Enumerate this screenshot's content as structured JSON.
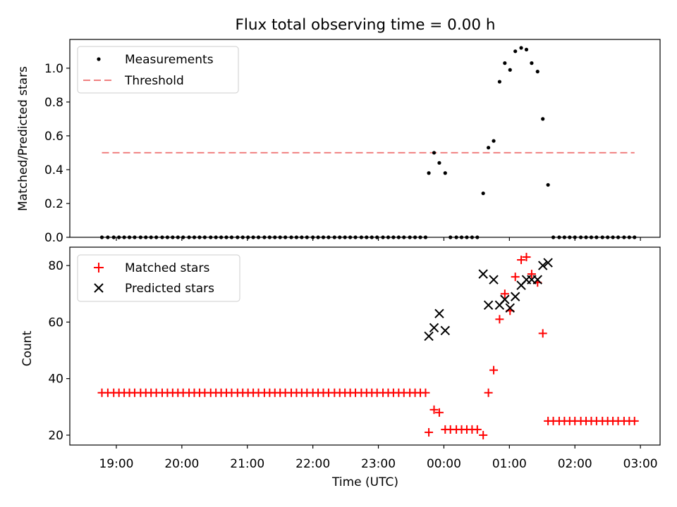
{
  "chart_data": {
    "title": "Flux total observing time = 0.00 h",
    "x_axis": {
      "label": "Time (UTC)",
      "ticks": [
        "19:00",
        "20:00",
        "21:00",
        "22:00",
        "23:00",
        "00:00",
        "01:00",
        "02:00",
        "03:00"
      ],
      "range_hours": [
        18.29,
        27.3
      ]
    },
    "panels": [
      {
        "type": "scatter",
        "ylabel": "Matched/Predicted stars",
        "ylim": [
          0,
          1.17
        ],
        "yticks": [
          "0.0",
          "0.2",
          "0.4",
          "0.6",
          "0.8",
          "1.0"
        ],
        "legend_position": "top-left",
        "series": [
          {
            "name": "Measurements",
            "marker": "dot",
            "color": "#000000",
            "x_hours": [
              18.78,
              18.87,
              18.96,
              19.04,
              19.12,
              19.2,
              19.28,
              19.37,
              19.45,
              19.53,
              19.61,
              19.7,
              19.78,
              19.86,
              19.94,
              20.02,
              20.11,
              20.19,
              20.27,
              20.35,
              20.44,
              20.52,
              20.6,
              20.68,
              20.76,
              20.85,
              20.93,
              21.01,
              21.09,
              21.17,
              21.26,
              21.34,
              21.42,
              21.5,
              21.58,
              21.67,
              21.75,
              21.83,
              21.91,
              22.0,
              22.08,
              22.16,
              22.24,
              22.33,
              22.41,
              22.49,
              22.57,
              22.65,
              22.74,
              22.82,
              22.9,
              22.98,
              23.07,
              23.15,
              23.23,
              23.31,
              23.39,
              23.48,
              23.56,
              23.64,
              23.72,
              23.77,
              23.85,
              23.93,
              24.02,
              24.1,
              24.19,
              24.27,
              24.35,
              24.43,
              24.51,
              24.6,
              24.68,
              24.76,
              24.85,
              24.93,
              25.01,
              25.09,
              25.18,
              25.26,
              25.34,
              25.43,
              25.51,
              25.59,
              25.67,
              25.76,
              25.84,
              25.92,
              26.0,
              26.09,
              26.17,
              26.25,
              26.33,
              26.42,
              26.5,
              26.58,
              26.66,
              26.75,
              26.83,
              26.91
            ],
            "y": [
              0,
              0,
              0,
              0,
              0,
              0,
              0,
              0,
              0,
              0,
              0,
              0,
              0,
              0,
              0,
              0,
              0,
              0,
              0,
              0,
              0,
              0,
              0,
              0,
              0,
              0,
              0,
              0,
              0,
              0,
              0,
              0,
              0,
              0,
              0,
              0,
              0,
              0,
              0,
              0,
              0,
              0,
              0,
              0,
              0,
              0,
              0,
              0,
              0,
              0,
              0,
              0,
              0,
              0,
              0,
              0,
              0,
              0,
              0,
              0,
              0,
              0.38,
              0.5,
              0.44,
              0.38,
              0,
              0,
              0,
              0,
              0,
              0,
              0.26,
              0.53,
              0.57,
              0.92,
              1.03,
              0.99,
              1.1,
              1.12,
              1.11,
              1.03,
              0.98,
              0.7,
              0.31,
              0,
              0,
              0,
              0,
              0,
              0,
              0,
              0,
              0,
              0,
              0,
              0,
              0,
              0,
              0,
              0
            ]
          },
          {
            "name": "Threshold",
            "marker": "dashed-line",
            "color": "#f08080",
            "x_hours": [
              18.78,
              26.91
            ],
            "y": [
              0.5,
              0.5
            ]
          }
        ]
      },
      {
        "type": "scatter",
        "ylabel": "Count",
        "ylim": [
          16.5,
          86.5
        ],
        "yticks": [
          "20",
          "40",
          "60",
          "80"
        ],
        "legend_position": "top-left",
        "series": [
          {
            "name": "Matched stars",
            "marker": "plus",
            "color": "#ff0000",
            "x_hours": [
              18.78,
              18.87,
              18.96,
              19.04,
              19.12,
              19.2,
              19.28,
              19.37,
              19.45,
              19.53,
              19.61,
              19.7,
              19.78,
              19.86,
              19.94,
              20.02,
              20.11,
              20.19,
              20.27,
              20.35,
              20.44,
              20.52,
              20.6,
              20.68,
              20.76,
              20.85,
              20.93,
              21.01,
              21.09,
              21.17,
              21.26,
              21.34,
              21.42,
              21.5,
              21.58,
              21.67,
              21.75,
              21.83,
              21.91,
              22.0,
              22.08,
              22.16,
              22.24,
              22.33,
              22.41,
              22.49,
              22.57,
              22.65,
              22.74,
              22.82,
              22.9,
              22.98,
              23.07,
              23.15,
              23.23,
              23.31,
              23.39,
              23.48,
              23.56,
              23.64,
              23.72,
              23.77,
              23.85,
              23.93,
              24.02,
              24.1,
              24.19,
              24.27,
              24.35,
              24.43,
              24.51,
              24.6,
              24.68,
              24.76,
              24.85,
              24.93,
              25.01,
              25.09,
              25.18,
              25.26,
              25.34,
              25.43,
              25.51,
              25.59,
              25.67,
              25.76,
              25.84,
              25.92,
              26.0,
              26.09,
              26.17,
              26.25,
              26.33,
              26.42,
              26.5,
              26.58,
              26.66,
              26.75,
              26.83,
              26.91
            ],
            "y": [
              35,
              35,
              35,
              35,
              35,
              35,
              35,
              35,
              35,
              35,
              35,
              35,
              35,
              35,
              35,
              35,
              35,
              35,
              35,
              35,
              35,
              35,
              35,
              35,
              35,
              35,
              35,
              35,
              35,
              35,
              35,
              35,
              35,
              35,
              35,
              35,
              35,
              35,
              35,
              35,
              35,
              35,
              35,
              35,
              35,
              35,
              35,
              35,
              35,
              35,
              35,
              35,
              35,
              35,
              35,
              35,
              35,
              35,
              35,
              35,
              35,
              21,
              29,
              28,
              22,
              22,
              22,
              22,
              22,
              22,
              22,
              20,
              35,
              43,
              61,
              70,
              64,
              76,
              82,
              83,
              77,
              74,
              56,
              25,
              25,
              25,
              25,
              25,
              25,
              25,
              25,
              25,
              25,
              25,
              25,
              25,
              25,
              25,
              25,
              25
            ]
          },
          {
            "name": "Predicted stars",
            "marker": "x",
            "color": "#000000",
            "x_hours": [
              23.77,
              23.85,
              23.93,
              24.02,
              24.6,
              24.68,
              24.76,
              24.85,
              24.93,
              25.01,
              25.09,
              25.18,
              25.26,
              25.34,
              25.43,
              25.51,
              25.59
            ],
            "y": [
              55,
              58,
              63,
              57,
              77,
              66,
              75,
              66,
              68,
              65,
              69,
              73,
              75,
              75,
              75,
              80,
              81
            ]
          }
        ]
      }
    ]
  }
}
